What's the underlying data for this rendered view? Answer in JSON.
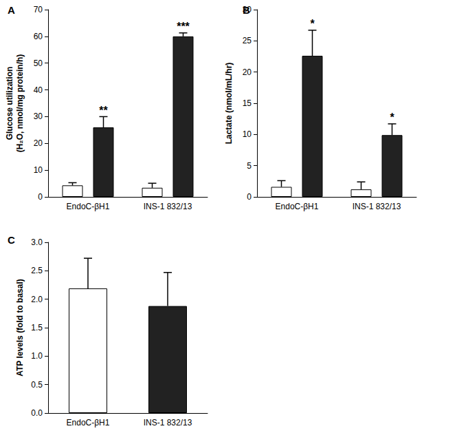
{
  "chart_data": [
    {
      "type": "bar",
      "title": "A",
      "y_label": "Glucose utilization\n(H₂O, nmol/mg protein/h)",
      "categories": [
        "EndoC-βH1",
        "INS-1 832/13"
      ],
      "ylim": [
        0,
        70
      ],
      "yticks": [
        0,
        10,
        20,
        30,
        40,
        50,
        60,
        70
      ],
      "grid": false,
      "series": [
        {
          "color": "#ffffff",
          "values": [
            4.3,
            3.4
          ],
          "errors": [
            1.0,
            1.7
          ]
        },
        {
          "color": "#222222",
          "values": [
            26.0,
            60.0
          ],
          "errors": [
            4.0,
            1.3
          ],
          "annotations": [
            "**",
            "***"
          ]
        }
      ]
    },
    {
      "type": "bar",
      "title": "B",
      "y_label": "Lactate (nmol/mL/hr)",
      "categories": [
        "EndoC-βH1",
        "INS-1 832/13"
      ],
      "ylim": [
        0,
        30
      ],
      "yticks": [
        0,
        5,
        10,
        15,
        20,
        25,
        30
      ],
      "grid": false,
      "series": [
        {
          "color": "#ffffff",
          "values": [
            1.6,
            1.2
          ],
          "errors": [
            1.0,
            1.2
          ]
        },
        {
          "color": "#222222",
          "values": [
            22.6,
            9.9
          ],
          "errors": [
            4.1,
            1.8
          ],
          "annotations": [
            "*",
            "*"
          ]
        }
      ]
    },
    {
      "type": "bar",
      "title": "C",
      "y_label": "ATP levels (fold to basal)",
      "categories": [
        "EndoC-βH1",
        "INS-1 832/13"
      ],
      "ylim": [
        0,
        3
      ],
      "yticks": [
        {
          "value": 0,
          "label": "0.0"
        },
        0.5,
        {
          "value": 1,
          "label": "1.0"
        },
        1.5,
        {
          "value": 2,
          "label": "2.0"
        },
        2.5,
        {
          "value": 3,
          "label": "3.0"
        }
      ],
      "grid": false,
      "series": [
        {
          "colors": [
            "#ffffff",
            "#222222"
          ],
          "values": [
            2.19,
            1.88
          ],
          "errors": [
            0.53,
            0.59
          ]
        }
      ]
    }
  ]
}
